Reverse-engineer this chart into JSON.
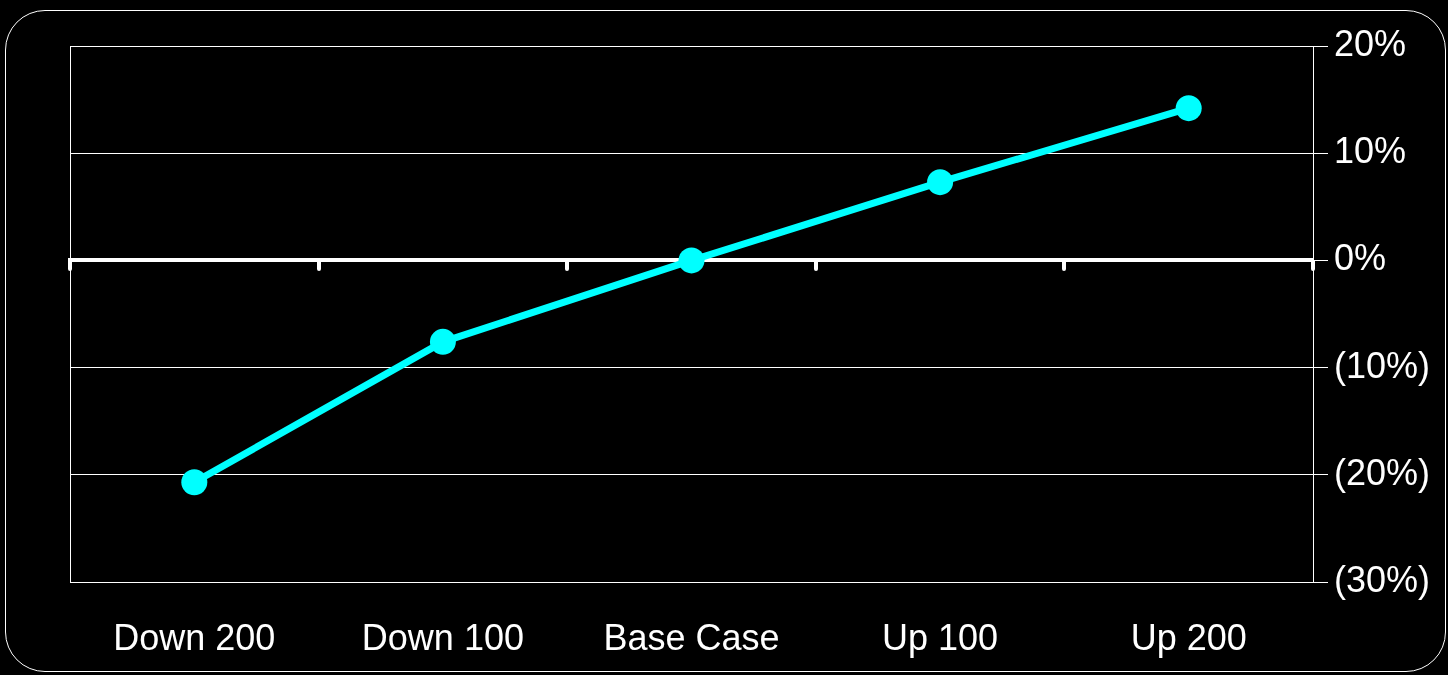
{
  "chart_data": {
    "type": "line",
    "categories": [
      "Down 200",
      "Down 100",
      "Base Case",
      "Up 100",
      "Up 200"
    ],
    "series": [
      {
        "color": "#00ffff",
        "values": [
          -20.7,
          -7.6,
          0,
          7.3,
          14.2
        ]
      }
    ],
    "ylim": [
      -30,
      20
    ],
    "yticks": [
      {
        "value": 20,
        "label": "20%"
      },
      {
        "value": 10,
        "label": "10%"
      },
      {
        "value": 0,
        "label": "0%"
      },
      {
        "value": -10,
        "label": "(10%)"
      },
      {
        "value": -20,
        "label": "(20%)"
      },
      {
        "value": -30,
        "label": "(30%)"
      }
    ],
    "grid": "y",
    "marker": "circle"
  }
}
